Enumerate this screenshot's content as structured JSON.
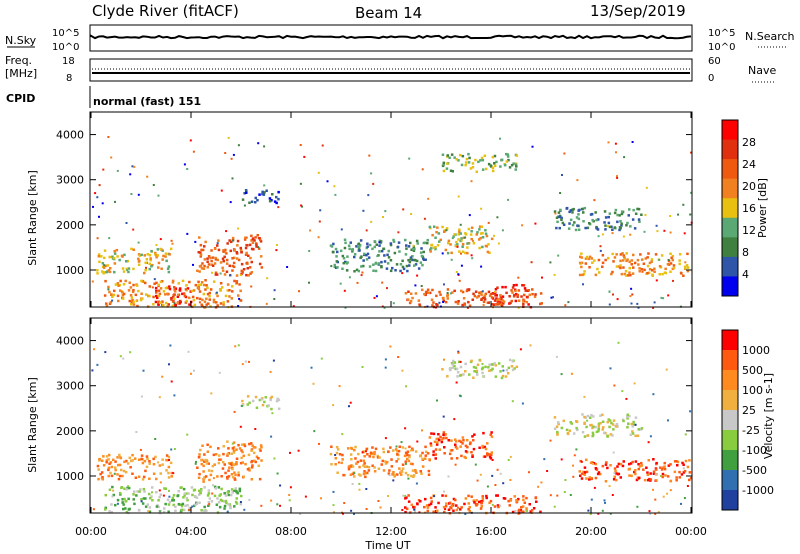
{
  "header": {
    "station": "Clyde River (fitACF)",
    "beam": "Beam 14",
    "date": "13/Sep/2019"
  },
  "panels": {
    "nsky": {
      "left_label": "N.Sky",
      "right_label": "N.Search",
      "left_ticks": [
        "10^5",
        "10^0"
      ],
      "right_ticks": [
        "10^5",
        "10^0"
      ]
    },
    "freq": {
      "left_label": "Freq.",
      "left_unit": "[MHz]",
      "right_label": "Nave",
      "left_ticks": [
        "18",
        "8"
      ],
      "right_ticks": [
        "60",
        "0"
      ]
    },
    "cpid": {
      "label": "CPID",
      "mode": "normal (fast) 151"
    }
  },
  "colors": {
    "power": [
      "#0000ee",
      "#2e55a8",
      "#3f8040",
      "#5aa873",
      "#e8c010",
      "#f08020",
      "#f05a10",
      "#e03010",
      "#ff0000"
    ],
    "velocity": [
      "#ff0000",
      "#ff5a10",
      "#ff8a20",
      "#f0b040",
      "#c8c8c8",
      "#8acc40",
      "#40a040",
      "#3070b0",
      "#2040a0"
    ]
  },
  "chart_data": [
    {
      "type": "heatmap",
      "name": "power",
      "ylabel": "Slant Range [km]",
      "xlabel": "",
      "yticks": [
        "1000",
        "2000",
        "3000",
        "4000"
      ],
      "xlim": [
        0,
        24
      ],
      "ylim": [
        180,
        4500
      ],
      "colorbar": {
        "label": "Power [dB]",
        "ticks": [
          "4",
          "8",
          "12",
          "16",
          "20",
          "24",
          "28"
        ]
      },
      "regions": [
        {
          "t0": 0.2,
          "t1": 3.2,
          "r0": 950,
          "r1": 1500,
          "level": 4
        },
        {
          "t0": 4.2,
          "t1": 6.8,
          "r0": 900,
          "r1": 1800,
          "level": 6
        },
        {
          "t0": 2.5,
          "t1": 4.0,
          "r0": 250,
          "r1": 700,
          "level": 8
        },
        {
          "t0": 0.5,
          "t1": 6.0,
          "r0": 200,
          "r1": 800,
          "level": 5
        },
        {
          "t0": 9.5,
          "t1": 13.5,
          "r0": 1000,
          "r1": 1700,
          "level": 2
        },
        {
          "t0": 16.0,
          "t1": 17.5,
          "r0": 250,
          "r1": 700,
          "level": 8
        },
        {
          "t0": 12.5,
          "t1": 18.0,
          "r0": 200,
          "r1": 600,
          "level": 6
        },
        {
          "t0": 19.5,
          "t1": 24.0,
          "r0": 900,
          "r1": 1400,
          "level": 5
        },
        {
          "t0": 18.5,
          "t1": 22.0,
          "r0": 1900,
          "r1": 2400,
          "level": 2
        },
        {
          "t0": 13.5,
          "t1": 16.0,
          "r0": 1400,
          "r1": 2000,
          "level": 4
        },
        {
          "t0": 14.0,
          "t1": 17.0,
          "r0": 3200,
          "r1": 3600,
          "level": 3
        },
        {
          "t0": 6.0,
          "t1": 7.5,
          "r0": 2500,
          "r1": 2800,
          "level": 1
        }
      ]
    },
    {
      "type": "heatmap",
      "name": "velocity",
      "ylabel": "Slant Range [km]",
      "xlabel": "Time UT",
      "xticks": [
        "00:00",
        "04:00",
        "08:00",
        "12:00",
        "16:00",
        "20:00",
        "00:00"
      ],
      "yticks": [
        "1000",
        "2000",
        "3000",
        "4000"
      ],
      "xlim": [
        0,
        24
      ],
      "ylim": [
        180,
        4500
      ],
      "colorbar": {
        "label": "Velocity [m s-1]",
        "ticks": [
          "1000",
          "500",
          "100",
          "25",
          "-25",
          "-100",
          "-500",
          "-1000"
        ]
      },
      "regions": [
        {
          "t0": 0.2,
          "t1": 3.2,
          "r0": 950,
          "r1": 1500,
          "level": 2
        },
        {
          "t0": 4.2,
          "t1": 6.8,
          "r0": 900,
          "r1": 1800,
          "level": 2
        },
        {
          "t0": 0.5,
          "t1": 6.0,
          "r0": 200,
          "r1": 800,
          "level": 5
        },
        {
          "t0": 9.5,
          "t1": 13.5,
          "r0": 1000,
          "r1": 1700,
          "level": 2
        },
        {
          "t0": 12.5,
          "t1": 18.0,
          "r0": 200,
          "r1": 600,
          "level": 1
        },
        {
          "t0": 19.5,
          "t1": 24.0,
          "r0": 900,
          "r1": 1400,
          "level": 1
        },
        {
          "t0": 18.5,
          "t1": 22.0,
          "r0": 1900,
          "r1": 2400,
          "level": 4
        },
        {
          "t0": 13.5,
          "t1": 16.0,
          "r0": 1400,
          "r1": 2000,
          "level": 1
        },
        {
          "t0": 14.0,
          "t1": 17.0,
          "r0": 3200,
          "r1": 3600,
          "level": 4
        },
        {
          "t0": 6.0,
          "t1": 7.5,
          "r0": 2500,
          "r1": 2800,
          "level": 4
        }
      ]
    }
  ]
}
